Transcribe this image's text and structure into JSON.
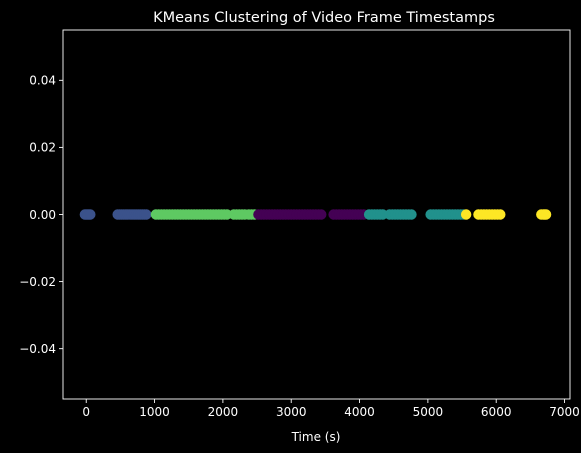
{
  "chart_data": {
    "type": "scatter",
    "title": "KMeans Clustering of Video Frame Timestamps",
    "xlabel": "Time (s)",
    "ylabel": "",
    "xlim": [
      -340,
      7080
    ],
    "ylim": [
      -0.055,
      0.055
    ],
    "x_ticks": [
      0,
      1000,
      2000,
      3000,
      4000,
      5000,
      6000,
      7000
    ],
    "x_tick_labels": [
      "0",
      "1000",
      "2000",
      "3000",
      "4000",
      "5000",
      "6000",
      "7000"
    ],
    "y_ticks": [
      0.04,
      0.02,
      0.0,
      -0.02,
      -0.04
    ],
    "y_tick_labels": [
      "0.04",
      "0.02",
      "0.00",
      "−0.02",
      "−0.04"
    ],
    "grid": false,
    "background": "#000000",
    "axes_color": "#ffffff",
    "series": [
      {
        "color": "#3b528b",
        "x": [
          -20,
          0,
          20,
          40,
          60,
          460,
          490,
          520,
          550,
          580,
          610,
          640,
          670,
          700,
          730,
          760,
          790,
          820,
          850,
          880
        ]
      },
      {
        "color": "#5ec962",
        "x": [
          1020,
          1060,
          1100,
          1140,
          1180,
          1220,
          1260,
          1300,
          1340,
          1380,
          1420,
          1460,
          1500,
          1540,
          1580,
          1620,
          1660,
          1700,
          1740,
          1780,
          1820,
          1860,
          1900,
          1940,
          1980,
          2020,
          2060,
          2160,
          2200,
          2240,
          2280,
          2320,
          2380,
          2420,
          2460
        ]
      },
      {
        "color": "#440154",
        "x": [
          2520,
          2560,
          2600,
          2640,
          2680,
          2720,
          2760,
          2800,
          2840,
          2880,
          2920,
          2960,
          3000,
          3040,
          3080,
          3120,
          3160,
          3200,
          3240,
          3280,
          3320,
          3360,
          3400,
          3440,
          3620,
          3660,
          3700,
          3740,
          3780,
          3820,
          3860,
          3900,
          3940,
          3980,
          4020,
          4060
        ]
      },
      {
        "color": "#21918c",
        "x": [
          4140,
          4180,
          4220,
          4260,
          4300,
          4340,
          4440,
          4480,
          4520,
          4560,
          4600,
          4640,
          4680,
          4720,
          4760,
          5040,
          5080,
          5120,
          5160,
          5200,
          5240,
          5280,
          5320,
          5360,
          5400,
          5440,
          5480,
          5520
        ]
      },
      {
        "color": "#fde725",
        "x": [
          5560,
          5740,
          5780,
          5820,
          5860,
          5900,
          5940,
          5980,
          6020,
          6060,
          6660,
          6690,
          6710,
          6730
        ]
      }
    ]
  }
}
